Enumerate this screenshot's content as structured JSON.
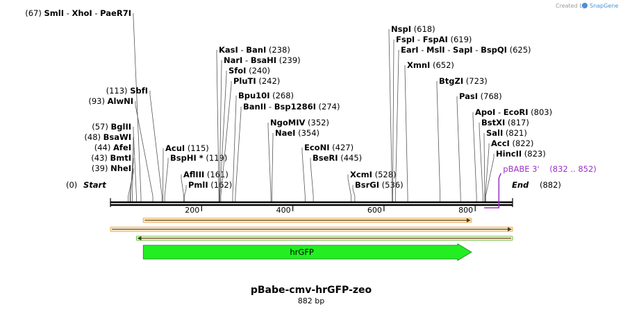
{
  "credit": {
    "prefix": "Created by",
    "brand": "SnapGene",
    "accent": "#4a90d9"
  },
  "plasmid": {
    "name": "pBabe-cmv-hrGFP-zeo",
    "length_label": "882 bp",
    "length": 882
  },
  "ends": {
    "start_label": "Start",
    "start_pos": "(0)",
    "end_label": "End",
    "end_pos": "(882)"
  },
  "axis": {
    "ticks": [
      200,
      400,
      600,
      800
    ]
  },
  "sites": [
    {
      "side": "left",
      "pos": 67,
      "row": "(67)",
      "parts": [
        "SmlI",
        "XhoI",
        "PaeR7I"
      ]
    },
    {
      "side": "left",
      "pos": 57,
      "row": "(57)",
      "parts": [
        "BglII"
      ]
    },
    {
      "side": "left",
      "pos": 48,
      "row": "(48)",
      "parts": [
        "BsaWI"
      ]
    },
    {
      "side": "left",
      "pos": 44,
      "row": "(44)",
      "parts": [
        "AfeI"
      ]
    },
    {
      "side": "left",
      "pos": 43,
      "row": "(43)",
      "parts": [
        "BmtI"
      ]
    },
    {
      "side": "left",
      "pos": 39,
      "row": "(39)",
      "parts": [
        "NheI"
      ]
    },
    {
      "side": "left",
      "pos": 113,
      "row": "(113)",
      "parts": [
        "SbfI"
      ]
    },
    {
      "side": "left",
      "pos": 93,
      "row": "(93)",
      "parts": [
        "AlwNI"
      ]
    },
    {
      "side": "right",
      "pos": 115,
      "row": "(115)",
      "parts": [
        "AcuI"
      ]
    },
    {
      "side": "right",
      "pos": 119,
      "row": "(119)",
      "parts": [
        "BspHI *"
      ]
    },
    {
      "side": "right",
      "pos": 161,
      "row": "(161)",
      "parts": [
        "AflIII"
      ]
    },
    {
      "side": "right",
      "pos": 162,
      "row": "(162)",
      "parts": [
        "PmlI"
      ]
    },
    {
      "side": "right",
      "pos": 238,
      "row": "(238)",
      "parts": [
        "KasI",
        "BanI"
      ]
    },
    {
      "side": "right",
      "pos": 239,
      "row": "(239)",
      "parts": [
        "NarI",
        "BsaHI"
      ]
    },
    {
      "side": "right",
      "pos": 240,
      "row": "(240)",
      "parts": [
        "SfoI"
      ]
    },
    {
      "side": "right",
      "pos": 242,
      "row": "(242)",
      "parts": [
        "PluTI"
      ]
    },
    {
      "side": "right",
      "pos": 268,
      "row": "(268)",
      "parts": [
        "Bpu10I"
      ]
    },
    {
      "side": "right",
      "pos": 274,
      "row": "(274)",
      "parts": [
        "BanII",
        "Bsp1286I"
      ]
    },
    {
      "side": "right",
      "pos": 352,
      "row": "(352)",
      "parts": [
        "NgoMIV"
      ]
    },
    {
      "side": "right",
      "pos": 354,
      "row": "(354)",
      "parts": [
        "NaeI"
      ]
    },
    {
      "side": "right",
      "pos": 427,
      "row": "(427)",
      "parts": [
        "EcoNI"
      ]
    },
    {
      "side": "right",
      "pos": 445,
      "row": "(445)",
      "parts": [
        "BseRI"
      ]
    },
    {
      "side": "right",
      "pos": 528,
      "row": "(528)",
      "parts": [
        "XcmI"
      ]
    },
    {
      "side": "right",
      "pos": 536,
      "row": "(536)",
      "parts": [
        "BsrGI"
      ]
    },
    {
      "side": "right",
      "pos": 618,
      "row": "(618)",
      "parts": [
        "NspI"
      ]
    },
    {
      "side": "right",
      "pos": 619,
      "row": "(619)",
      "parts": [
        "FspI",
        "FspAI"
      ]
    },
    {
      "side": "right",
      "pos": 625,
      "row": "(625)",
      "parts": [
        "EarI",
        "MslI",
        "SapI",
        "BspQI"
      ]
    },
    {
      "side": "right",
      "pos": 652,
      "row": "(652)",
      "parts": [
        "XmnI"
      ]
    },
    {
      "side": "right",
      "pos": 723,
      "row": "(723)",
      "parts": [
        "BtgZI"
      ]
    },
    {
      "side": "right",
      "pos": 768,
      "row": "(768)",
      "parts": [
        "PasI"
      ]
    },
    {
      "side": "right",
      "pos": 803,
      "row": "(803)",
      "parts": [
        "ApoI",
        "EcoRI"
      ]
    },
    {
      "side": "right",
      "pos": 817,
      "row": "(817)",
      "parts": [
        "BstXI"
      ]
    },
    {
      "side": "right",
      "pos": 821,
      "row": "(821)",
      "parts": [
        "SalI"
      ]
    },
    {
      "side": "right",
      "pos": 822,
      "row": "(822)",
      "parts": [
        "AccI"
      ]
    },
    {
      "side": "right",
      "pos": 823,
      "row": "(823)",
      "parts": [
        "HincII"
      ]
    }
  ],
  "primer": {
    "name": "pBABE 3'",
    "range": "(832 .. 852)",
    "start": 832,
    "end": 852,
    "color": "#9b30c8"
  },
  "features": [
    {
      "kind": "orf",
      "start": 72,
      "end": 792,
      "strand": 1,
      "color": "#e6a23c"
    },
    {
      "kind": "orf",
      "start": 0,
      "end": 882,
      "strand": 1,
      "color": "#e6a23c"
    },
    {
      "kind": "orf",
      "start": 57,
      "end": 882,
      "strand": -1,
      "color": "#6fbe44"
    },
    {
      "kind": "gene",
      "name": "hrGFP",
      "start": 72,
      "end": 792,
      "strand": 1,
      "color": "#22ee22"
    }
  ]
}
